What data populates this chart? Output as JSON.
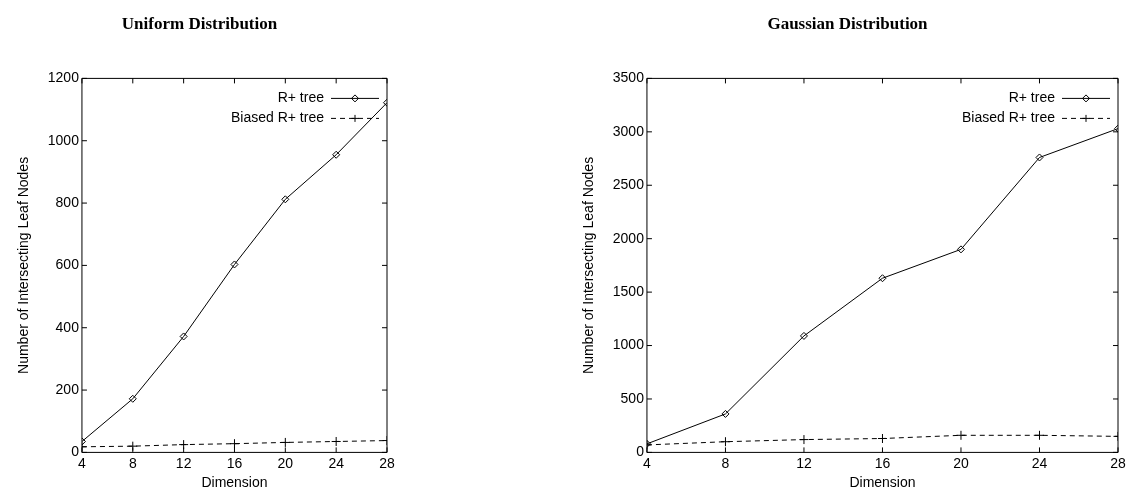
{
  "chart_data": [
    {
      "type": "line",
      "title": "Uniform Distribution",
      "xlabel": "Dimension",
      "ylabel": "Number of Intersecting Leaf Nodes",
      "x": [
        4,
        8,
        12,
        16,
        20,
        24,
        28
      ],
      "xlim": [
        4,
        28
      ],
      "xticks": [
        4,
        8,
        12,
        16,
        20,
        24,
        28
      ],
      "ylim": [
        0,
        1200
      ],
      "yticks": [
        0,
        200,
        400,
        600,
        800,
        1000,
        1200
      ],
      "grid": false,
      "legend": "top right",
      "series": [
        {
          "name": "R+ tree",
          "color": "#000000",
          "marker": "diamond",
          "line_style": "solid",
          "values": [
            35,
            172,
            372,
            603,
            812,
            955,
            1122
          ]
        },
        {
          "name": "Biased R+ tree",
          "color": "#000000",
          "marker": "cross",
          "line_style": "dashed",
          "values": [
            18,
            20,
            25,
            28,
            32,
            35,
            38
          ]
        }
      ]
    },
    {
      "type": "line",
      "title": "Gaussian Distribution",
      "xlabel": "Dimension",
      "ylabel": "Number of Intersecting Leaf Nodes",
      "x": [
        4,
        8,
        12,
        16,
        20,
        24,
        28
      ],
      "xlim": [
        4,
        28
      ],
      "xticks": [
        4,
        8,
        12,
        16,
        20,
        24,
        28
      ],
      "ylim": [
        0,
        3500
      ],
      "yticks": [
        0,
        500,
        1000,
        1500,
        2000,
        2500,
        3000,
        3500
      ],
      "grid": false,
      "legend": "top right",
      "series": [
        {
          "name": "R+ tree",
          "color": "#000000",
          "marker": "diamond",
          "line_style": "solid",
          "values": [
            80,
            360,
            1090,
            1630,
            1900,
            2760,
            3030
          ]
        },
        {
          "name": "Biased R+ tree",
          "color": "#000000",
          "marker": "cross",
          "line_style": "dashed",
          "values": [
            70,
            100,
            120,
            130,
            160,
            160,
            150
          ]
        }
      ]
    }
  ]
}
